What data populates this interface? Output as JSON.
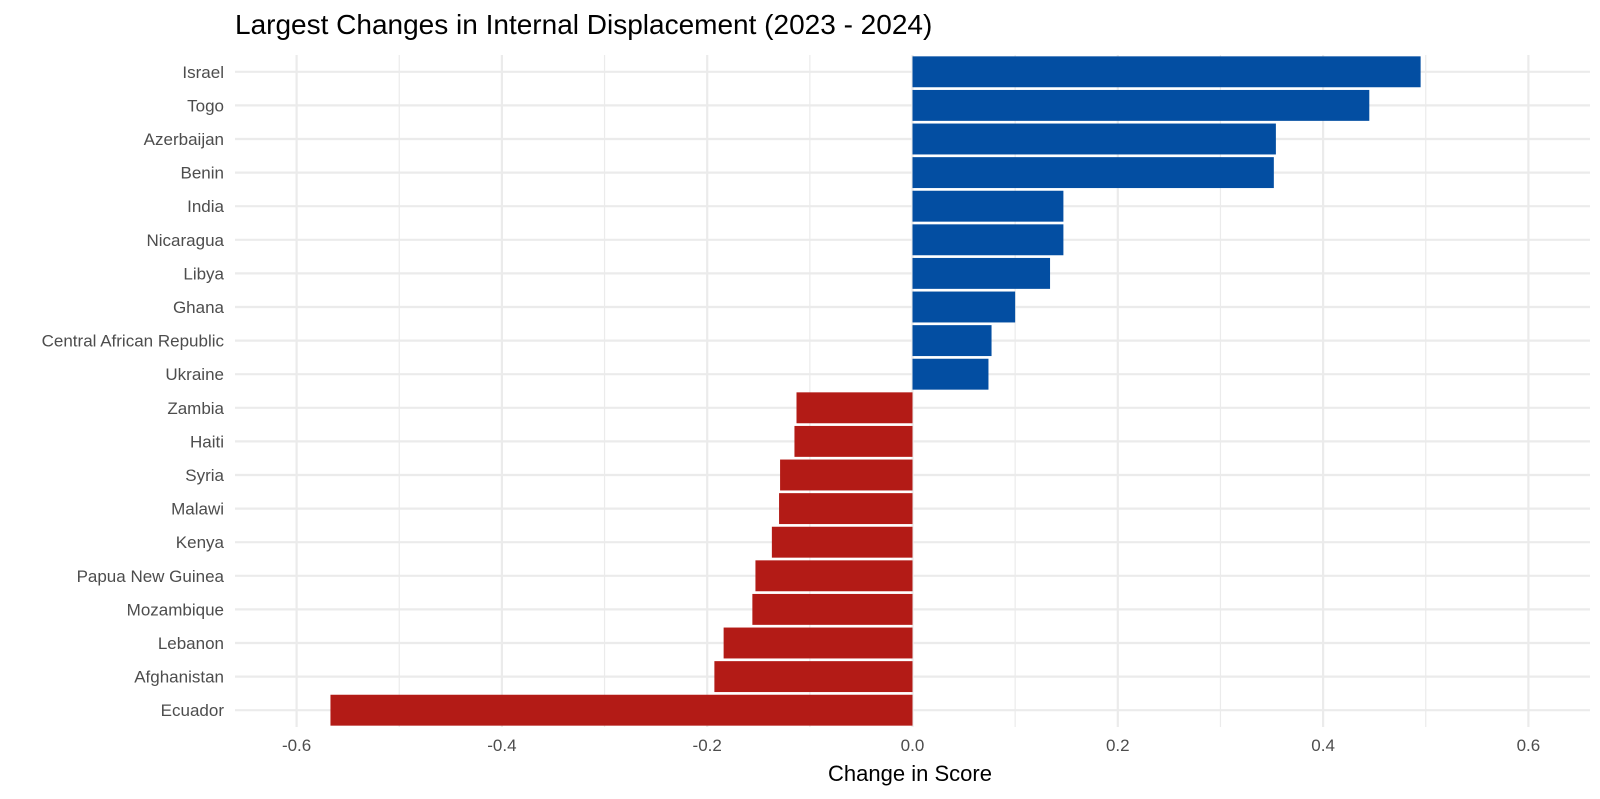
{
  "chart_data": {
    "type": "bar",
    "orientation": "horizontal",
    "title": "Largest Changes in Internal Displacement (2023 - 2024)",
    "xlabel": "Change in Score",
    "ylabel": "",
    "xlim": [
      -0.66,
      0.66
    ],
    "x_ticks": [
      -0.6,
      -0.4,
      -0.2,
      0.0,
      0.2,
      0.4,
      0.6
    ],
    "x_tick_labels": [
      "-0.6",
      "-0.4",
      "-0.2",
      "0.0",
      "0.2",
      "0.4",
      "0.6"
    ],
    "grid": true,
    "legend": "none",
    "colors": {
      "positive": "#034ea2",
      "negative": "#b31b16",
      "grid": "#ebebeb"
    },
    "categories": [
      "Israel",
      "Togo",
      "Azerbaijan",
      "Benin",
      "India",
      "Nicaragua",
      "Libya",
      "Ghana",
      "Central African Republic",
      "Ukraine",
      "Zambia",
      "Haiti",
      "Syria",
      "Malawi",
      "Kenya",
      "Papua New Guinea",
      "Mozambique",
      "Lebanon",
      "Afghanistan",
      "Ecuador"
    ],
    "values": [
      0.495,
      0.445,
      0.354,
      0.352,
      0.147,
      0.147,
      0.134,
      0.1,
      0.077,
      0.074,
      -0.113,
      -0.115,
      -0.129,
      -0.13,
      -0.137,
      -0.153,
      -0.156,
      -0.184,
      -0.193,
      -0.567
    ]
  }
}
